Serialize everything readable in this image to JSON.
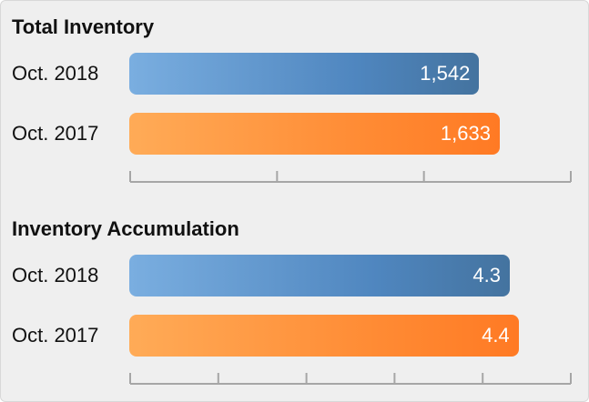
{
  "chart_data": [
    {
      "type": "bar",
      "orientation": "horizontal",
      "title": "Total Inventory",
      "categories": [
        "Oct. 2018",
        "Oct. 2017"
      ],
      "values": [
        1542,
        1633
      ],
      "value_labels": [
        "1,542",
        "1,633"
      ],
      "xlim": [
        0,
        1950
      ],
      "tick_count": 4,
      "grid": false,
      "colors": [
        "#4f86bf",
        "#ff8a33"
      ]
    },
    {
      "type": "bar",
      "orientation": "horizontal",
      "title": "Inventory Accumulation",
      "categories": [
        "Oct. 2018",
        "Oct. 2017"
      ],
      "values": [
        4.3,
        4.4
      ],
      "value_labels": [
        "4.3",
        "4.4"
      ],
      "xlim": [
        0,
        5
      ],
      "tick_count": 6,
      "grid": false,
      "colors": [
        "#4f86bf",
        "#ff8a33"
      ]
    }
  ]
}
